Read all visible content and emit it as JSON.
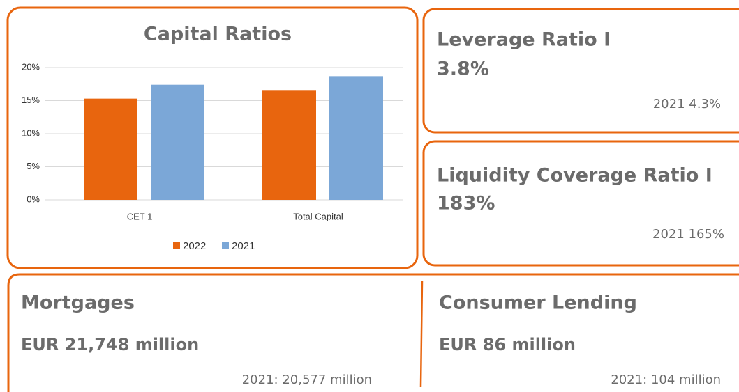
{
  "chart_data": {
    "type": "bar",
    "title": "Capital Ratios",
    "categories": [
      "CET 1",
      "Total Capital"
    ],
    "series": [
      {
        "name": "2022",
        "color": "#e8650e",
        "values": [
          15.3,
          16.6
        ]
      },
      {
        "name": "2021",
        "color": "#7ba7d7",
        "values": [
          17.4,
          18.7
        ]
      }
    ],
    "ylim": [
      0,
      20
    ],
    "yticks": [
      {
        "value": 0,
        "label": "0%"
      },
      {
        "value": 5,
        "label": "5%"
      },
      {
        "value": 10,
        "label": "10%"
      },
      {
        "value": 15,
        "label": "15%"
      },
      {
        "value": 20,
        "label": "20%"
      }
    ],
    "grid": true,
    "legend": "bottom"
  },
  "leverage": {
    "title": "Leverage Ratio I",
    "value": "3.8%",
    "previous": "2021 4.3%"
  },
  "liquidity": {
    "title": "Liquidity Coverage Ratio I",
    "value": "183%",
    "previous": "2021 165%"
  },
  "mortgages": {
    "title": "Mortgages",
    "value": "EUR 21,748 million",
    "previous": "2021: 20,577 million"
  },
  "consumer_lending": {
    "title": "Consumer Lending",
    "value": "EUR 86 million",
    "previous": "2021: 104 million"
  }
}
